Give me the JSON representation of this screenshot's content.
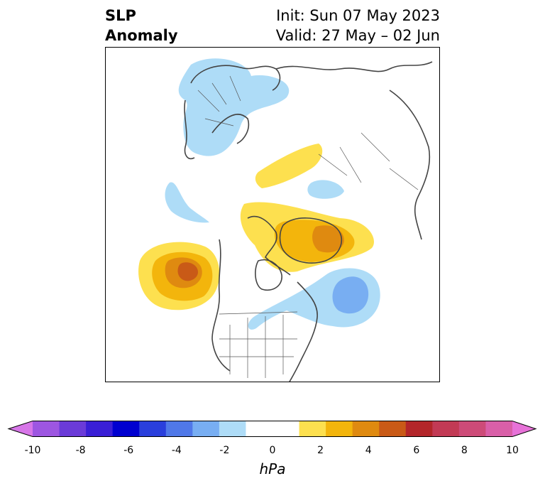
{
  "title": {
    "left_line1": "SLP",
    "left_line2": "Anomaly",
    "right_line1": "Init: Sun 07 May 2023",
    "right_line2": "Valid: 27 May – 02 Jun"
  },
  "colorbar": {
    "unit": "hPa",
    "ticks": [
      "-10",
      "-8",
      "-6",
      "-4",
      "-2",
      "0",
      "2",
      "4",
      "6",
      "8",
      "10"
    ],
    "colors": [
      "#d776e8",
      "#9d56e1",
      "#6b3bd8",
      "#3a1fd6",
      "#0000d0",
      "#2a3fdc",
      "#5078e8",
      "#78aef2",
      "#aedcf7",
      "#ffffff",
      "#ffffff",
      "#fde04f",
      "#f3b50c",
      "#df8a10",
      "#c95a17",
      "#b3262a",
      "#c23a55",
      "#cd4b78",
      "#d95fa8",
      "#e772d8"
    ],
    "extend": "both"
  },
  "map": {
    "projection": "polar-stereographic",
    "region": "North America and Arctic",
    "colors": {
      "neg_light": "#aedcf7",
      "neg_mid": "#78aef2",
      "pos_light": "#fde04f",
      "pos_mid": "#f3b50c",
      "pos_strong": "#df8a10",
      "pos_max": "#c95a17",
      "coast": "#444444"
    }
  }
}
